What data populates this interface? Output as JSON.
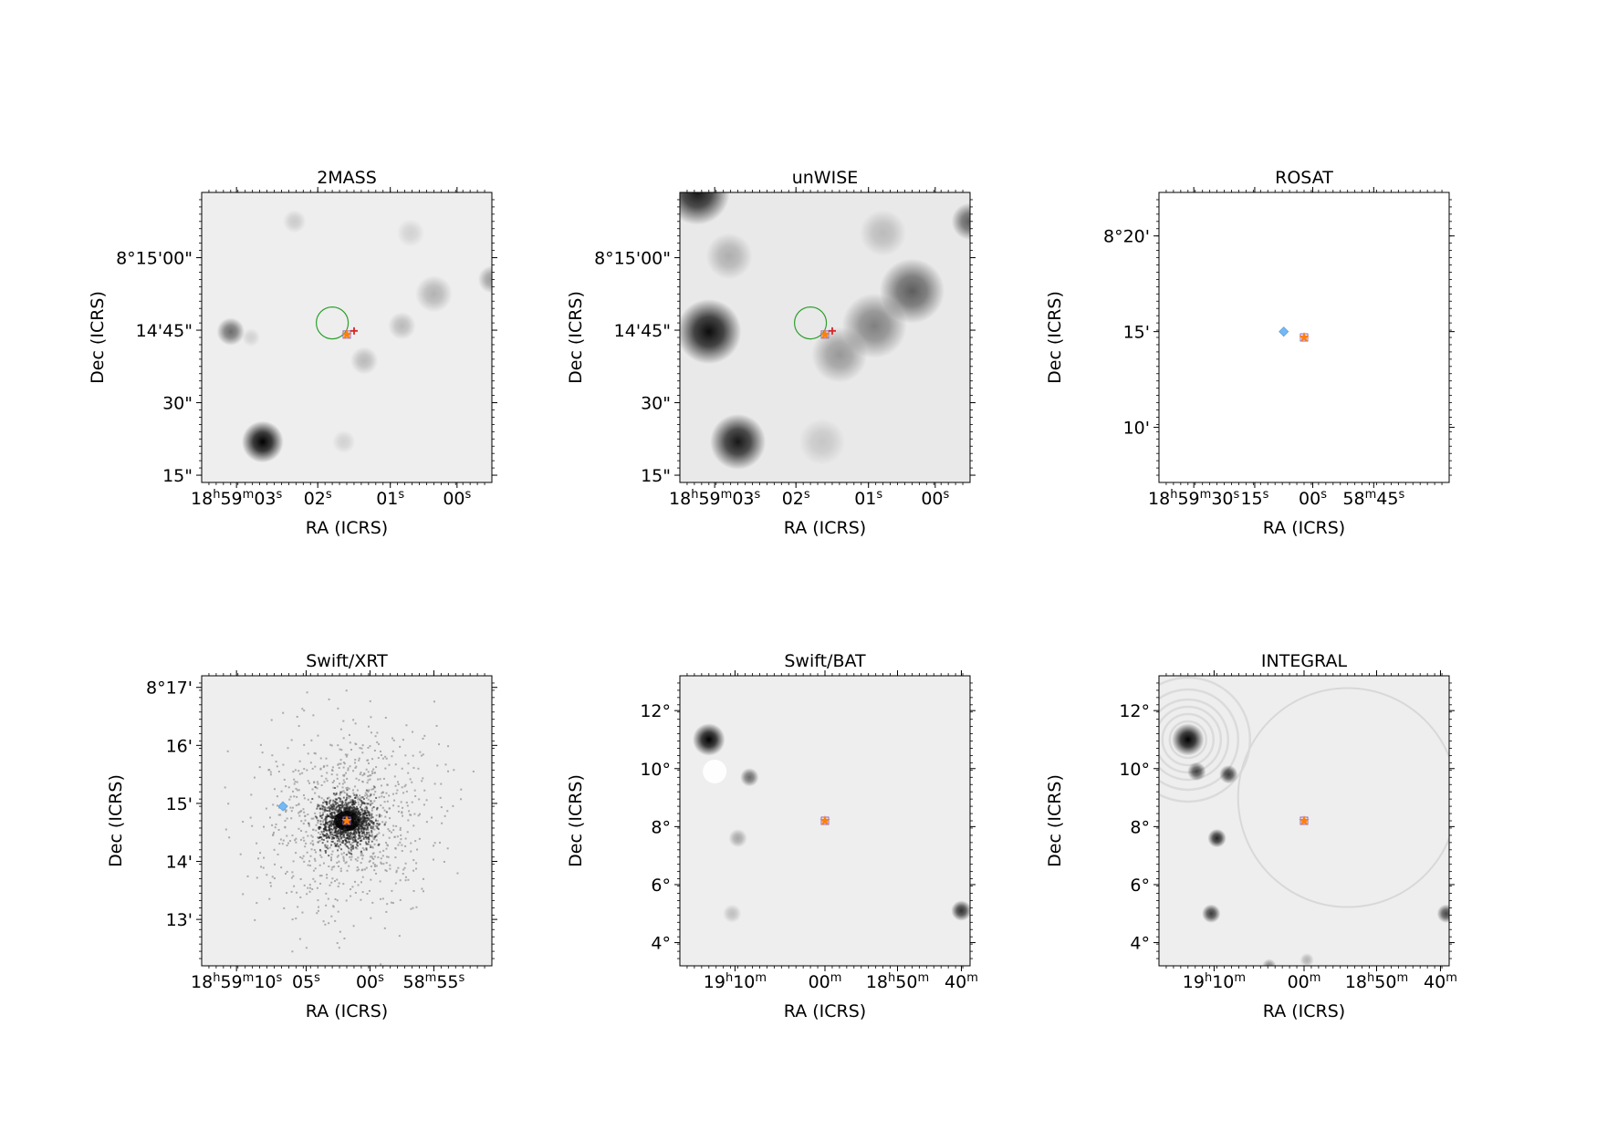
{
  "panels": [
    {
      "title": "2MASS",
      "xlabel": "RA (ICRS)",
      "ylabel": "Dec (ICRS)",
      "xticks": [
        "18h59m03s",
        "02s",
        "01s",
        "00s"
      ],
      "yticks": [
        "8°15'00\"",
        "14'45\"",
        "30\"",
        "15\""
      ],
      "image": "light-grey star field with faint blobs",
      "blobs": [
        [
          0.21,
          0.86,
          0.045,
          1.0
        ],
        [
          0.1,
          0.48,
          0.03,
          0.55
        ],
        [
          0.32,
          0.1,
          0.025,
          0.15
        ],
        [
          0.72,
          0.14,
          0.03,
          0.12
        ],
        [
          0.8,
          0.35,
          0.04,
          0.25
        ],
        [
          0.69,
          0.46,
          0.03,
          0.22
        ],
        [
          0.56,
          0.58,
          0.03,
          0.22
        ],
        [
          0.49,
          0.86,
          0.025,
          0.12
        ],
        [
          1.0,
          0.3,
          0.03,
          0.35
        ],
        [
          0.17,
          0.5,
          0.02,
          0.12
        ]
      ],
      "circle": [
        0.45,
        0.45,
        0.055
      ],
      "markers": [
        0.5,
        0.49
      ]
    },
    {
      "title": "unWISE",
      "xlabel": "RA (ICRS)",
      "ylabel": "Dec (ICRS)",
      "xticks": [
        "18h59m03s",
        "02s",
        "01s",
        "00s"
      ],
      "yticks": [
        "8°15'00\"",
        "14'45\"",
        "30\"",
        "15\""
      ],
      "image": "blurry infrared field with several dark sources",
      "blobs": [
        [
          0.1,
          0.48,
          0.07,
          0.95
        ],
        [
          0.2,
          0.86,
          0.06,
          0.9
        ],
        [
          0.06,
          0.0,
          0.07,
          0.9
        ],
        [
          1.0,
          0.1,
          0.04,
          0.6
        ],
        [
          0.8,
          0.34,
          0.07,
          0.6
        ],
        [
          0.67,
          0.46,
          0.07,
          0.45
        ],
        [
          0.55,
          0.56,
          0.06,
          0.35
        ],
        [
          0.17,
          0.22,
          0.05,
          0.25
        ],
        [
          0.7,
          0.14,
          0.05,
          0.2
        ],
        [
          0.49,
          0.86,
          0.05,
          0.15
        ]
      ],
      "circle": [
        0.45,
        0.45,
        0.055
      ],
      "markers": [
        0.5,
        0.49
      ]
    },
    {
      "title": "ROSAT",
      "xlabel": "RA (ICRS)",
      "ylabel": "Dec (ICRS)",
      "xticks": [
        "18h59m30s",
        "15s",
        "00s",
        "58m45s"
      ],
      "yticks": [
        "8°20'",
        "15'",
        "10'"
      ],
      "image": "blank white field",
      "blobs": [],
      "diamond": [
        0.43,
        0.48
      ],
      "markers": [
        0.5,
        0.5
      ]
    },
    {
      "title": "Swift/XRT",
      "xlabel": "RA (ICRS)",
      "ylabel": "Dec (ICRS)",
      "xticks": [
        "18h59m10s",
        "05s",
        "00s",
        "58m55s"
      ],
      "yticks": [
        "8°17'",
        "16'",
        "15'",
        "14'",
        "13'"
      ],
      "image": "sparse photon events concentrated at centre",
      "blobs": [],
      "diamond": [
        0.28,
        0.45
      ],
      "markers": [
        0.5,
        0.5
      ]
    },
    {
      "title": "Swift/BAT",
      "xlabel": "RA (ICRS)",
      "ylabel": "Dec (ICRS)",
      "xticks": [
        "19h10m",
        "00m",
        "18h50m",
        "40m"
      ],
      "yticks": [
        "12°",
        "10°",
        "8°",
        "6°",
        "4°"
      ],
      "image": "coded-mask sky map with a few sources",
      "blobs": [
        [
          0.1,
          0.22,
          0.035,
          1.0
        ],
        [
          0.24,
          0.35,
          0.02,
          0.55
        ],
        [
          0.2,
          0.56,
          0.02,
          0.3
        ],
        [
          0.18,
          0.82,
          0.02,
          0.2
        ],
        [
          0.97,
          0.81,
          0.022,
          0.8
        ]
      ],
      "markers": [
        0.5,
        0.5
      ]
    },
    {
      "title": "INTEGRAL",
      "xlabel": "RA (ICRS)",
      "ylabel": "Dec (ICRS)",
      "xticks": [
        "19h10m",
        "00m",
        "18h50m",
        "40m"
      ],
      "yticks": [
        "12°",
        "10°",
        "8°",
        "6°",
        "4°"
      ],
      "image": "mosaic sky map with ring artefacts",
      "blobs": [
        [
          0.1,
          0.22,
          0.035,
          1.0
        ],
        [
          0.13,
          0.33,
          0.02,
          0.7
        ],
        [
          0.24,
          0.34,
          0.02,
          0.75
        ],
        [
          0.2,
          0.56,
          0.02,
          0.85
        ],
        [
          0.18,
          0.82,
          0.02,
          0.75
        ],
        [
          0.99,
          0.82,
          0.02,
          0.7
        ],
        [
          0.38,
          1.0,
          0.015,
          0.4
        ],
        [
          0.51,
          0.98,
          0.015,
          0.25
        ]
      ],
      "rings": [
        0.1,
        0.22
      ],
      "markers": [
        0.5,
        0.5
      ]
    }
  ],
  "colors": {
    "circle": "#2ca02c",
    "star": "#ff7f0e",
    "diamond": "#74b9f5",
    "plus": "#d62728",
    "square": "#9467bd"
  }
}
